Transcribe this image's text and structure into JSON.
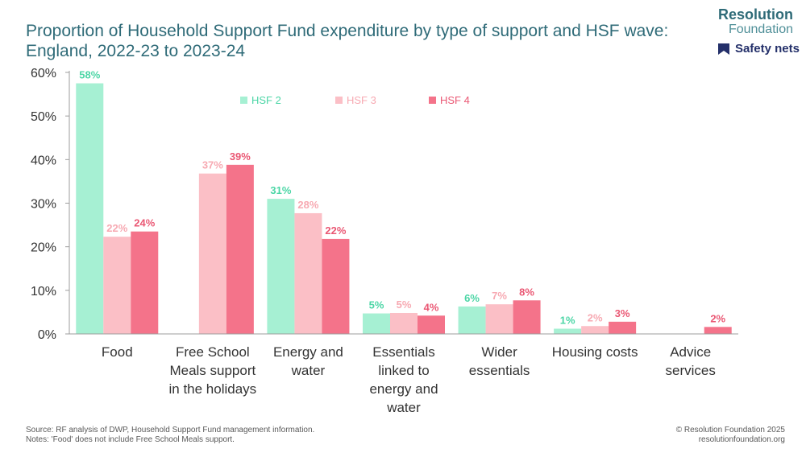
{
  "header": {
    "title": "Proportion of Household Support Fund expenditure by type of support and HSF wave: England, 2022-23 to 2023-24"
  },
  "branding": {
    "name": "Resolution",
    "name_sub": "Foundation",
    "theme_label": "Safety nets",
    "theme_icon": "bookmark-icon"
  },
  "footer": {
    "source": "Source: RF analysis of DWP, Household Support Fund management information.",
    "notes": "Notes: 'Food' does not include Free School Meals support.",
    "copyright": "© Resolution Foundation 2025",
    "website": "resolutionfoundation.org"
  },
  "chart_data": {
    "type": "bar",
    "title": "Proportion of Household Support Fund expenditure by type of support and HSF wave: England, 2022-23 to 2023-24",
    "xlabel": "",
    "ylabel": "",
    "ylim": [
      0,
      60
    ],
    "yticks": [
      0,
      10,
      20,
      30,
      40,
      50,
      60
    ],
    "ytick_labels": [
      "0%",
      "10%",
      "20%",
      "30%",
      "40%",
      "50%",
      "60%"
    ],
    "grid": false,
    "legend_position": "top-center",
    "categories": [
      [
        "Food"
      ],
      [
        "Free School",
        "Meals support",
        "in the holidays"
      ],
      [
        "Energy and",
        "water"
      ],
      [
        "Essentials",
        "linked to",
        "energy and",
        "water"
      ],
      [
        "Wider",
        "essentials"
      ],
      [
        "Housing costs"
      ],
      [
        "Advice",
        "services"
      ]
    ],
    "series": [
      {
        "name": "HSF 2",
        "color": "#a6f0d3",
        "label_color": "#4cd6a6",
        "values": [
          57.5,
          null,
          31,
          4.7,
          6.3,
          1.2,
          null
        ],
        "labels": [
          "58%",
          "",
          "31%",
          "5%",
          "6%",
          "1%",
          ""
        ]
      },
      {
        "name": "HSF 3",
        "color": "#fbbfc6",
        "label_color": "#f7a9b2",
        "values": [
          22.3,
          36.8,
          27.7,
          4.8,
          6.8,
          1.8,
          null
        ],
        "labels": [
          "22%",
          "37%",
          "28%",
          "5%",
          "7%",
          "2%",
          ""
        ]
      },
      {
        "name": "HSF 4",
        "color": "#f4738a",
        "label_color": "#ea5874",
        "values": [
          23.5,
          38.8,
          21.8,
          4.2,
          7.7,
          2.8,
          1.6
        ],
        "labels": [
          "24%",
          "39%",
          "22%",
          "4%",
          "8%",
          "3%",
          "2%"
        ]
      }
    ],
    "axis_color": "#9e9e9e",
    "tick_label_color": "#333333"
  }
}
